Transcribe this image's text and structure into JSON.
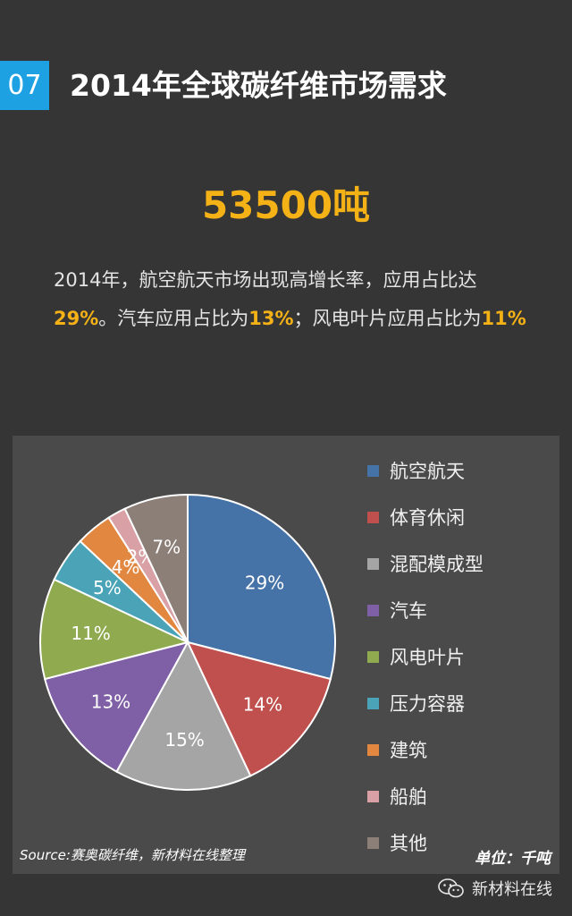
{
  "header": {
    "number": "07",
    "title": "2014年全球碳纤维市场需求"
  },
  "big_value": "53500吨",
  "description": {
    "line1": "2014年，航空航天市场出现高增长率，应用占比达",
    "hl1": "29%",
    "mid1": "。汽车应用占比为",
    "hl2": "13%",
    "mid2": "；风电叶片应用占比为",
    "hl3": "11%"
  },
  "chart_data": {
    "type": "pie",
    "unit": "单位：千吨",
    "source": "Source:赛奥碳纤维，新材料在线整理",
    "legend_position": "right",
    "slices": [
      {
        "name": "航空航天",
        "value": 29,
        "label": "29%",
        "color": "#4572a7"
      },
      {
        "name": "体育休闲",
        "value": 14,
        "label": "14%",
        "color": "#c0504d"
      },
      {
        "name": "混配模成型",
        "value": 15,
        "label": "15%",
        "color": "#a5a5a5"
      },
      {
        "name": "汽车",
        "value": 13,
        "label": "13%",
        "color": "#7f5fa5"
      },
      {
        "name": "风电叶片",
        "value": 11,
        "label": "11%",
        "color": "#8faa4f"
      },
      {
        "name": "压力容器",
        "value": 5,
        "label": "5%",
        "color": "#4aa3b7"
      },
      {
        "name": "建筑",
        "value": 4,
        "label": "4%",
        "color": "#e28740"
      },
      {
        "name": "船舶",
        "value": 2,
        "label": "2%",
        "color": "#d9a0a5"
      },
      {
        "name": "其他",
        "value": 7,
        "label": "7%",
        "color": "#8c7f78"
      }
    ]
  },
  "footer": {
    "brand": "新材料在线",
    "icon": "wechat-icon"
  }
}
